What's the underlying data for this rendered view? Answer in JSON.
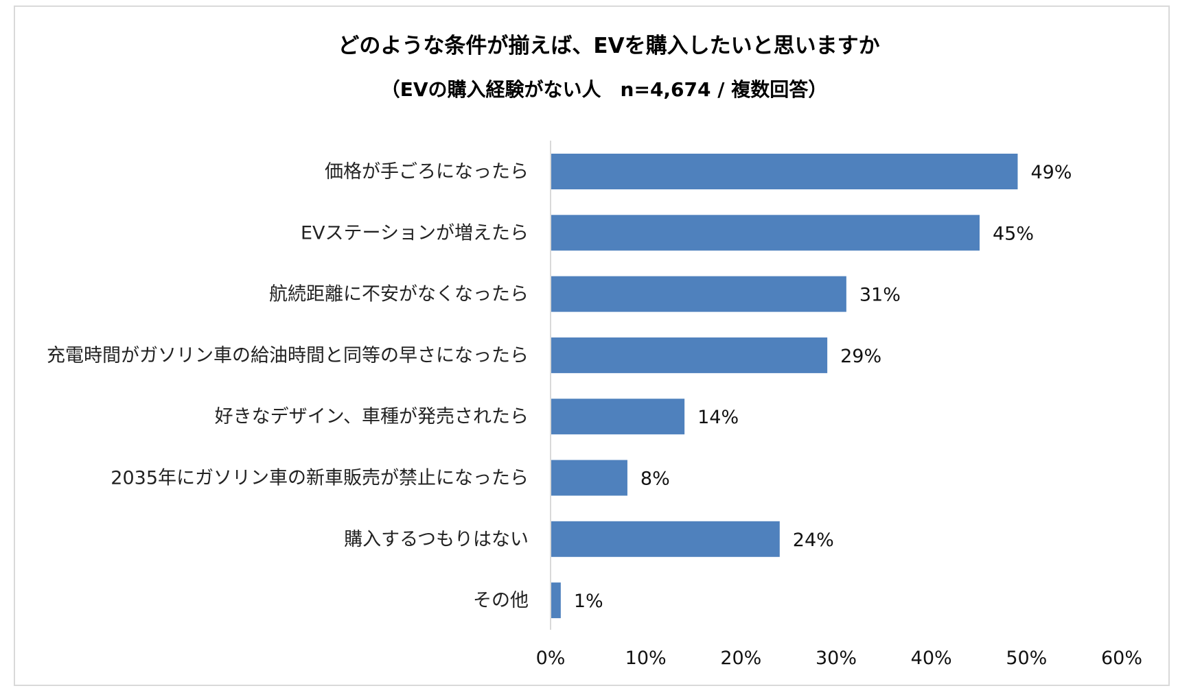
{
  "chart_data": {
    "type": "bar",
    "orientation": "horizontal",
    "title": "どのような条件が揃えば、EVを購入したいと思いますか",
    "subtitle": "（EVの購入経験がない人　n=4,674 / 複数回答）",
    "categories": [
      "価格が手ごろになったら",
      "EVステーションが増えたら",
      "航続距離に不安がなくなったら",
      "充電時間がガソリン車の給油時間と同等の早さになったら",
      "好きなデザイン、車種が発売されたら",
      "2035年にガソリン車の新車販売が禁止になったら",
      "購入するつもりはない",
      "その他"
    ],
    "values": [
      49,
      45,
      31,
      29,
      14,
      8,
      24,
      1
    ],
    "value_labels": [
      "49%",
      "45%",
      "31%",
      "29%",
      "14%",
      "8%",
      "24%",
      "1%"
    ],
    "xlim": [
      0,
      60
    ],
    "xticks": [
      0,
      10,
      20,
      30,
      40,
      50,
      60
    ],
    "xtick_labels": [
      "0%",
      "10%",
      "20%",
      "30%",
      "40%",
      "50%",
      "60%"
    ],
    "bar_color": "#4f81bd",
    "axis_color": "#d9d9d9",
    "grid": false,
    "legend": "none"
  }
}
